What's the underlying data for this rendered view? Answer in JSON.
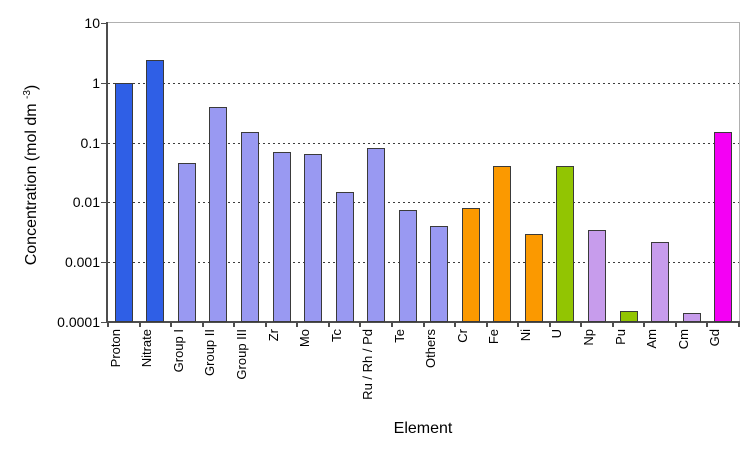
{
  "chart_data": {
    "type": "bar",
    "title": "",
    "xlabel": "Element",
    "ylabel": "Concentration (mol dm⁻³)",
    "ylabel_parts": {
      "main": "Concentration (mol dm ",
      "sup": "-3",
      "close": ")"
    },
    "yscale": "log",
    "ylim": [
      0.0001,
      10
    ],
    "ytick_labels": [
      "10",
      "1",
      "0.1",
      "0.01",
      "0.001",
      "0.0001"
    ],
    "grid": {
      "horizontal": true,
      "style": "dashed",
      "at": [
        1,
        0.1,
        0.01,
        0.001
      ]
    },
    "legend_position": "none",
    "categories": [
      "Proton",
      "Nitrate",
      "Group I",
      "Group II",
      "Group III",
      "Zr",
      "Mo",
      "Tc",
      "Ru / Rh / Pd",
      "Te",
      "Others",
      "Cr",
      "Fe",
      "Ni",
      "U",
      "Np",
      "Pu",
      "Am",
      "Cm",
      "Gd"
    ],
    "values": [
      1.0,
      2.4,
      0.045,
      0.4,
      0.15,
      0.07,
      0.065,
      0.015,
      0.08,
      0.0075,
      0.004,
      0.008,
      0.04,
      0.003,
      0.04,
      0.0035,
      0.00015,
      0.0022,
      0.00014,
      0.15
    ],
    "colors_by_bar": [
      "blue",
      "blue",
      "periwinkle",
      "periwinkle",
      "periwinkle",
      "periwinkle",
      "periwinkle",
      "periwinkle",
      "periwinkle",
      "periwinkle",
      "periwinkle",
      "orange",
      "orange",
      "orange",
      "green",
      "lilac",
      "green",
      "lilac",
      "lilac",
      "magenta"
    ],
    "palette": {
      "blue": "#2f5fe6",
      "periwinkle": "#9999f2",
      "orange": "#fb9900",
      "green": "#92c502",
      "lilac": "#c79cec",
      "magenta": "#f400f4"
    },
    "bar_border_color": "#3a3a3a",
    "axis_color": "#4d4d4d",
    "plot_border_color": "#b0b0b0"
  }
}
